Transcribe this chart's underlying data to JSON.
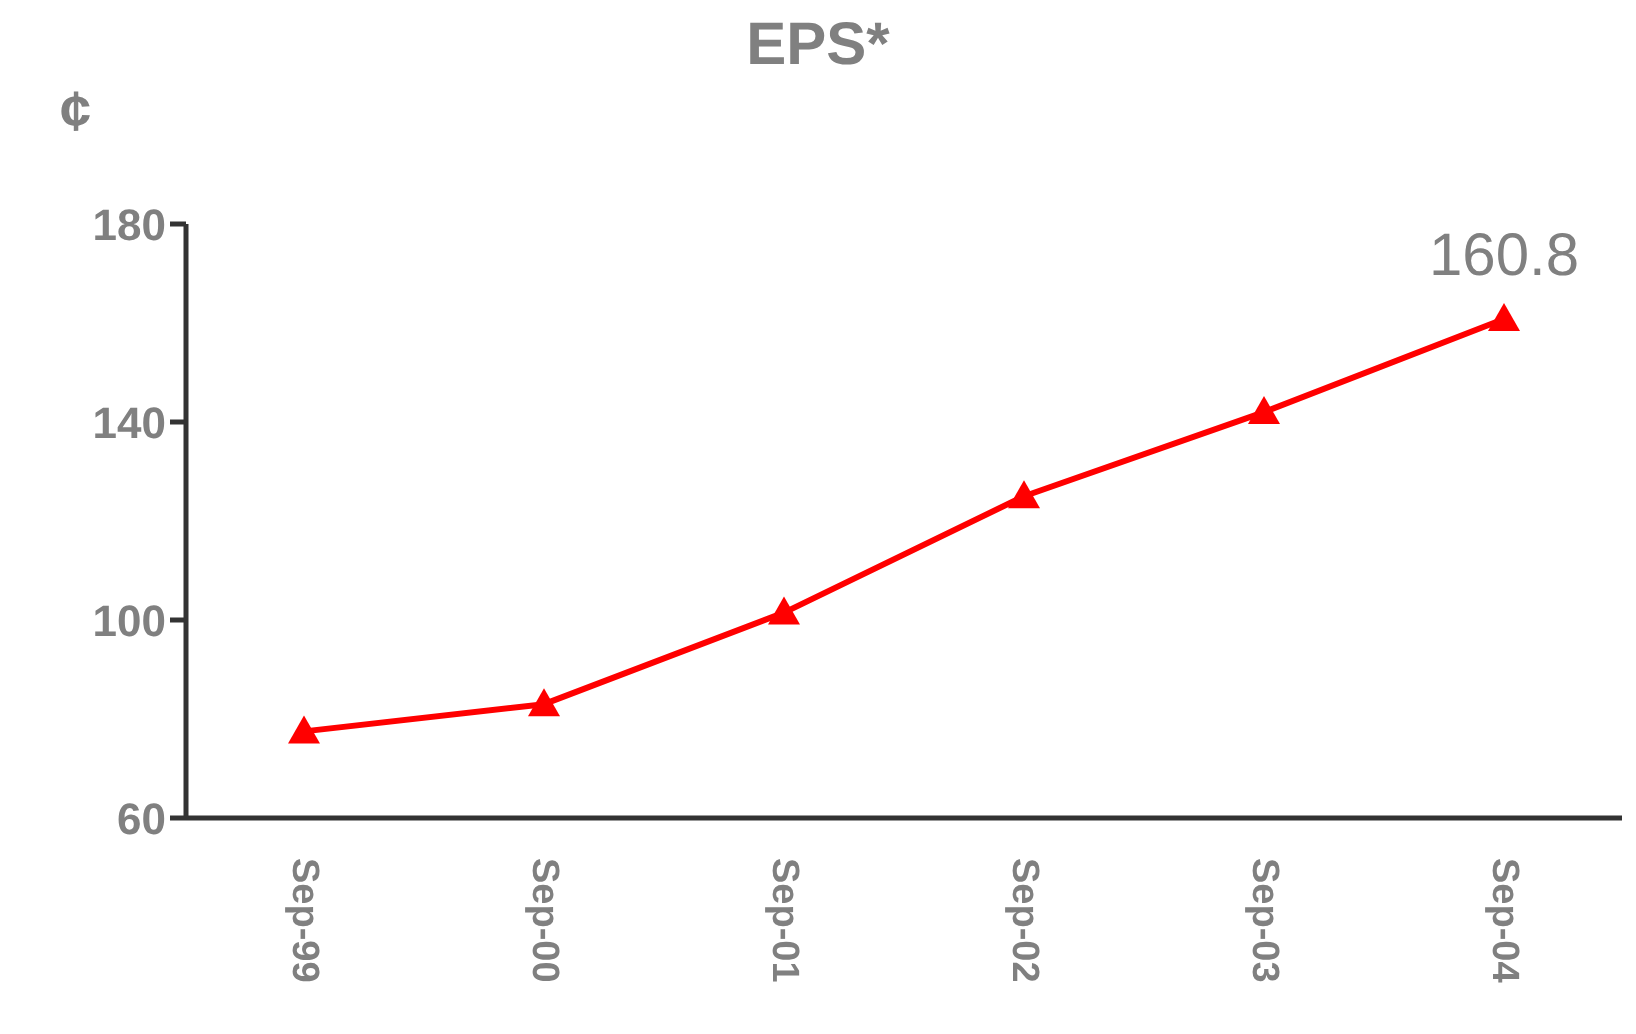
{
  "chart_data": {
    "type": "line",
    "title": "EPS*",
    "ylabel": "¢",
    "categories": [
      "Sep-99",
      "Sep-00",
      "Sep-01",
      "Sep-02",
      "Sep-03",
      "Sep-04"
    ],
    "series": [
      {
        "color": "#ff0000",
        "values": [
          77.5,
          83,
          101.5,
          125,
          142,
          160.8
        ],
        "value_labels": [
          null,
          null,
          null,
          null,
          null,
          "160.8"
        ]
      }
    ],
    "ylim": [
      60,
      180
    ],
    "yticks": [
      60,
      100,
      140,
      180
    ],
    "grid": false,
    "legend": false,
    "marker": "triangle",
    "line_style": "solid"
  }
}
